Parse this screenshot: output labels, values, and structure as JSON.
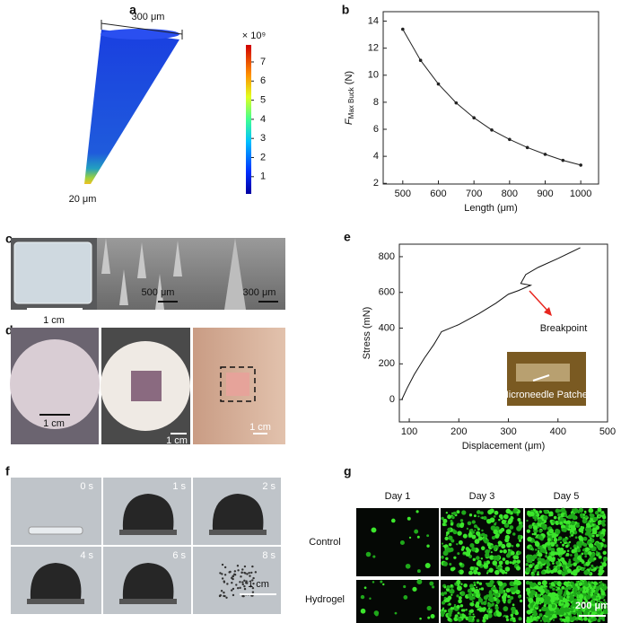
{
  "figure": {
    "panel_labels": [
      "a",
      "b",
      "c",
      "d",
      "e",
      "f",
      "g"
    ],
    "a": {
      "top_dimension": "300 μm",
      "bottom_dimension": "20 μm",
      "colorbar_unit": "× 10⁹",
      "colorbar_ticks": [
        7,
        6,
        5,
        4,
        3,
        2,
        1
      ]
    },
    "c": {
      "scale_bars": [
        "1 cm",
        "500 μm",
        "300 μm"
      ]
    },
    "d": {
      "scale_bars": [
        "1 cm",
        "1 cm",
        "1 cm"
      ]
    },
    "f": {
      "times": [
        "0 s",
        "1 s",
        "2 s",
        "4 s",
        "6 s",
        "8 s"
      ],
      "scale_bar": "1 cm"
    },
    "g": {
      "columns": [
        "Day 1",
        "Day 3",
        "Day 5"
      ],
      "rows": [
        "Control",
        "Hydrogel"
      ],
      "scale_bar": "200 μm"
    }
  },
  "chart_data": [
    {
      "type": "line",
      "x_label": "Length (μm)",
      "y_label": {
        "symbol": "F",
        "subscript": "Max Buck",
        "unit": "(N)"
      },
      "x": [
        500,
        550,
        600,
        650,
        700,
        750,
        800,
        850,
        900,
        950,
        1000
      ],
      "series": [
        {
          "color": "#222222",
          "values": [
            13.4,
            11.1,
            9.35,
            7.95,
            6.85,
            5.95,
            5.25,
            4.65,
            4.15,
            3.7,
            3.35
          ]
        }
      ],
      "markers": true,
      "xlim": [
        445,
        1050
      ],
      "xticks": [
        500,
        600,
        700,
        800,
        900,
        1000
      ],
      "ylim": [
        1.95,
        14.7
      ],
      "yticks": [
        2,
        4,
        6,
        8,
        10,
        12,
        14
      ]
    },
    {
      "type": "line",
      "x_label": "Displacement (μm)",
      "y_label": "Stress (mN)",
      "x": [
        85,
        95,
        110,
        130,
        150,
        165,
        200,
        240,
        275,
        300,
        320,
        345,
        325,
        335,
        360,
        400,
        445
      ],
      "series": [
        {
          "color": "#111111",
          "values": [
            0,
            60,
            140,
            230,
            310,
            380,
            420,
            480,
            540,
            590,
            610,
            640,
            650,
            700,
            740,
            790,
            850
          ]
        }
      ],
      "markers": false,
      "xlim": [
        80,
        500
      ],
      "xticks": [
        100,
        200,
        300,
        400,
        500
      ],
      "ylim": [
        -125,
        870
      ],
      "yticks": [
        0,
        200,
        400,
        600,
        800
      ],
      "annotation": "Breakpoint",
      "annotation_color": "#e8261f",
      "inset_label": "Microneedle Patches"
    }
  ]
}
